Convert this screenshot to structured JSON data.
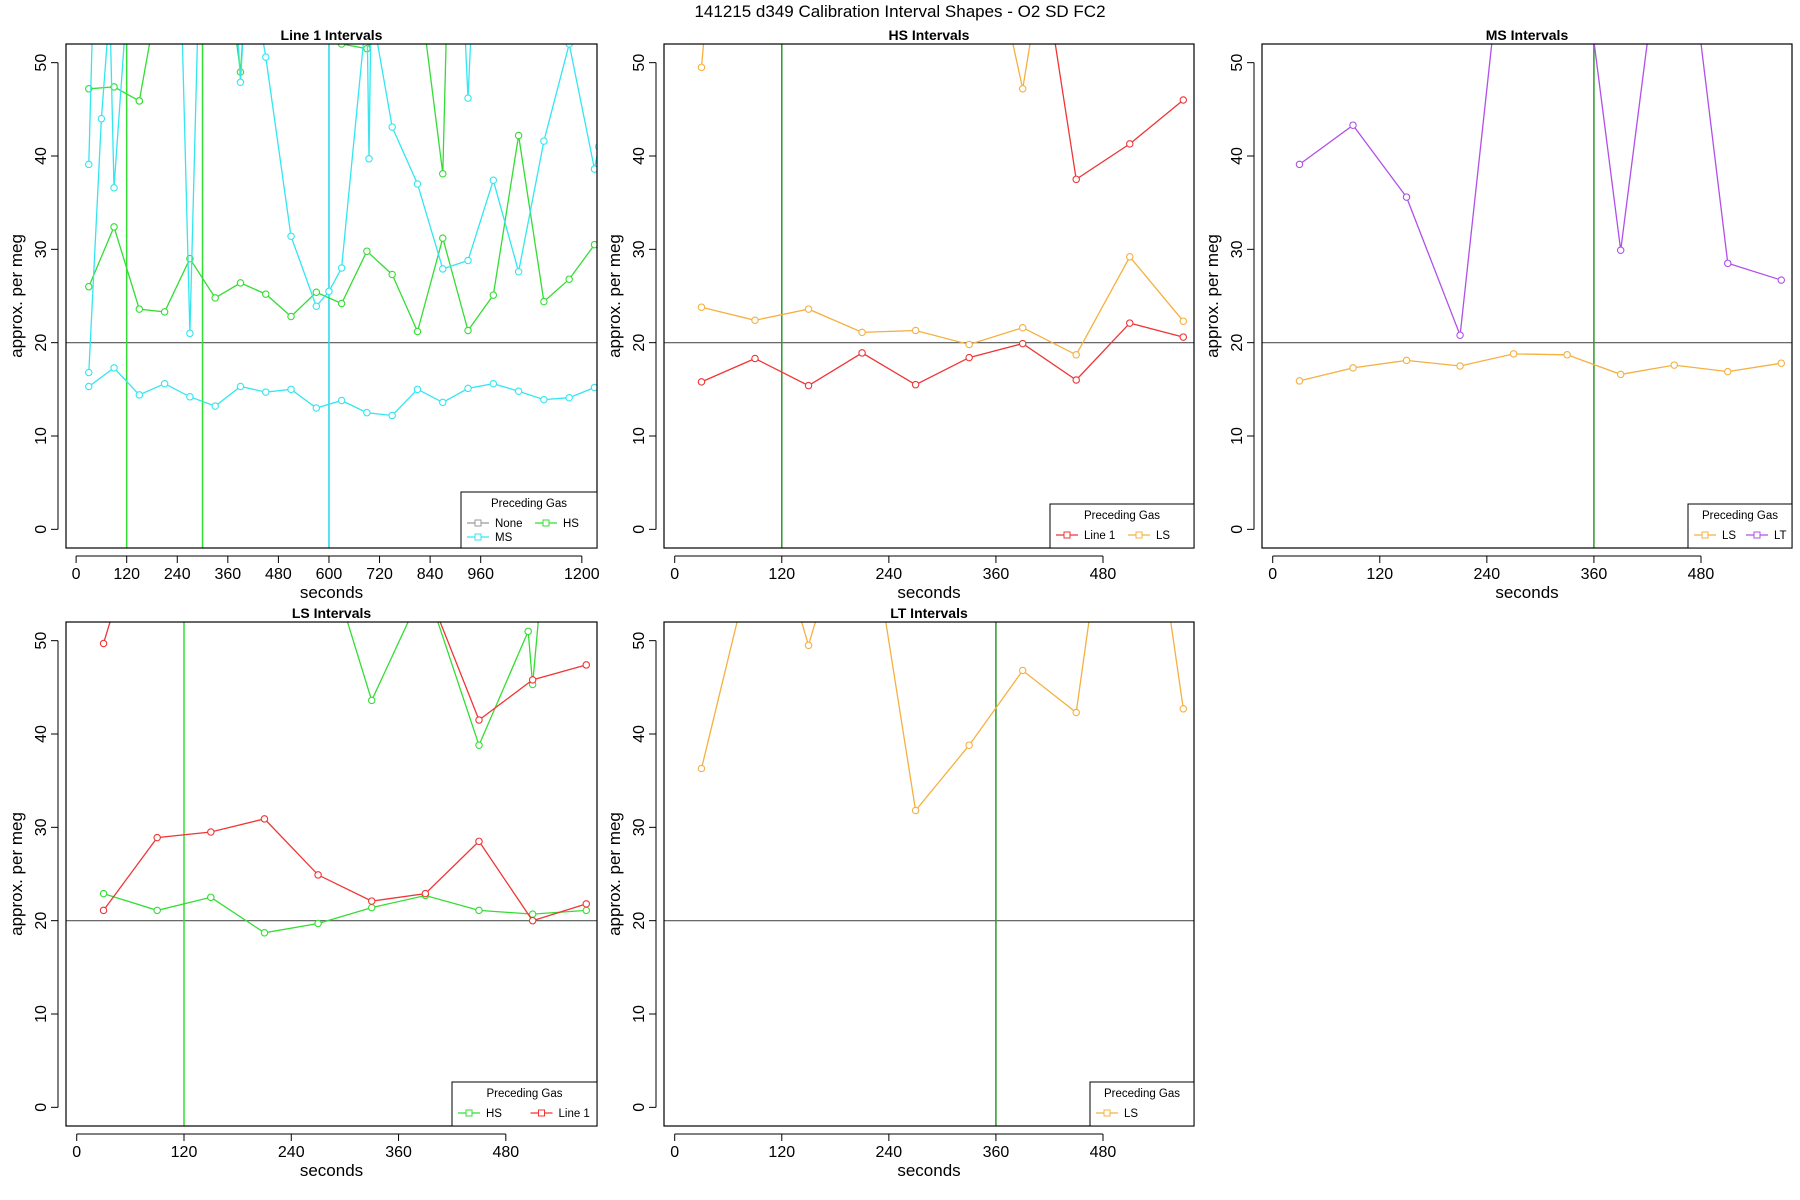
{
  "figure_title": "141215   d349   Calibration Interval Shapes - O2 SD FC2",
  "colors": {
    "frame": "#000000",
    "hline": "#555555",
    "None": "#999999",
    "HS": "#33dd33",
    "MS": "#33e6f0",
    "Line 1": "#f03535",
    "LS": "#f5b040",
    "LT": "#b050e8",
    "vline_green": "#2a9a2a",
    "vline_bright_green": "#33dd33",
    "vline_cyan": "#22d8ee"
  },
  "chart_data": [
    {
      "type": "line",
      "title": "Line 1 Intervals",
      "xlabel": "seconds",
      "ylabel": "approx. per meg",
      "xlim": [
        -24,
        1236
      ],
      "ylim": [
        -2,
        52
      ],
      "xticks": [
        0,
        120,
        240,
        360,
        480,
        600,
        720,
        840,
        960,
        1200
      ],
      "yticks": [
        0,
        10,
        20,
        30,
        40,
        50
      ],
      "hline": 20,
      "vlines": [
        {
          "x": 120,
          "color_key": "vline_bright_green"
        },
        {
          "x": 300,
          "color_key": "vline_bright_green"
        },
        {
          "x": 600,
          "color_key": "vline_cyan"
        }
      ],
      "legend": {
        "title": "Preceding Gas",
        "entries": [
          "None",
          "HS",
          "MS"
        ]
      },
      "series": [
        {
          "name": "HS",
          "color_key": "HS",
          "x": [
            30,
            90,
            150
          ],
          "y": [
            47.2,
            47.4,
            45.9
          ]
        },
        {
          "name": "HS",
          "color_key": "HS",
          "x": [
            30,
            90,
            150,
            210,
            270,
            330,
            390,
            450,
            510,
            570,
            630,
            690,
            750,
            810,
            870,
            930,
            990,
            1050,
            1110,
            1170,
            1230
          ],
          "y": [
            26.0,
            32.4,
            23.6,
            23.3,
            29.0,
            24.8,
            26.4,
            25.2,
            22.8,
            25.4,
            24.2,
            29.8,
            27.3,
            21.2,
            31.2,
            21.3,
            25.1,
            42.2,
            24.4,
            26.8,
            30.5
          ]
        },
        {
          "name": "HS",
          "color_key": "HS",
          "x": [
            150,
            190,
            370,
            390,
            400,
            570,
            630,
            690,
            750,
            820,
            870,
            880,
            930
          ],
          "y": [
            45.9,
            56,
            56,
            49.0,
            56,
            56,
            52.0,
            51.5,
            56,
            56,
            38.1,
            56,
            56
          ]
        },
        {
          "name": "MS",
          "color_key": "MS",
          "x": [
            30,
            60,
            80,
            90,
            120
          ],
          "y": [
            16.8,
            44.0,
            56,
            36.6,
            56
          ]
        },
        {
          "name": "MS",
          "color_key": "MS",
          "x": [
            30,
            90,
            150,
            210,
            270,
            330,
            390,
            450,
            510,
            570,
            630,
            690,
            750,
            810,
            870,
            930,
            990,
            1050,
            1110,
            1170,
            1230
          ],
          "y": [
            15.3,
            17.3,
            14.4,
            15.6,
            14.2,
            13.2,
            15.3,
            14.7,
            15.0,
            13.0,
            13.8,
            12.5,
            12.2,
            15.0,
            13.6,
            15.1,
            15.6,
            14.8,
            13.9,
            14.1,
            15.2
          ]
        },
        {
          "name": "MS",
          "color_key": "MS",
          "x": [
            30,
            40,
            250,
            270,
            290,
            380,
            390,
            400,
            430,
            450,
            510,
            570,
            600,
            630,
            690,
            695,
            700,
            750,
            810,
            870,
            930,
            990,
            1050,
            1110,
            1170,
            1230,
            1240
          ],
          "y": [
            39.1,
            56,
            56,
            21.0,
            56,
            56,
            47.9,
            56,
            56,
            50.6,
            31.4,
            23.9,
            25.5,
            28.0,
            56,
            39.7,
            56,
            43.1,
            37.0,
            27.9,
            28.8,
            37.4,
            27.6,
            41.6,
            52.0,
            38.6,
            41.0
          ]
        },
        {
          "name": "MS",
          "color_key": "MS",
          "x": [
            920,
            930,
            940
          ],
          "y": [
            56,
            46.2,
            56
          ]
        }
      ]
    },
    {
      "type": "line",
      "title": "HS Intervals",
      "xlabel": "seconds",
      "ylabel": "approx. per meg",
      "xlim": [
        -12,
        582
      ],
      "ylim": [
        -2,
        52
      ],
      "xticks": [
        0,
        120,
        240,
        360,
        480
      ],
      "yticks": [
        0,
        10,
        20,
        30,
        40,
        50
      ],
      "hline": 20,
      "vlines": [
        {
          "x": 120,
          "color_key": "vline_green"
        }
      ],
      "legend": {
        "title": "Preceding Gas",
        "entries": [
          "Line 1",
          "LS"
        ]
      },
      "series": [
        {
          "name": "Line 1",
          "color_key": "Line 1",
          "x": [
            30,
            90,
            150,
            210,
            270,
            330,
            390,
            450,
            510,
            570
          ],
          "y": [
            15.8,
            18.3,
            15.4,
            18.9,
            15.5,
            18.4,
            19.9,
            16.0,
            22.1,
            20.6
          ]
        },
        {
          "name": "Line 1",
          "color_key": "Line 1",
          "x": [
            420,
            450,
            510,
            570
          ],
          "y": [
            56,
            37.5,
            41.3,
            46.0
          ]
        },
        {
          "name": "LS",
          "color_key": "LS",
          "x": [
            30,
            90,
            150,
            210,
            270,
            330,
            390,
            450,
            510,
            570
          ],
          "y": [
            23.8,
            22.4,
            23.6,
            21.1,
            21.3,
            19.8,
            21.6,
            18.7,
            29.2,
            22.3
          ]
        },
        {
          "name": "LS",
          "color_key": "LS",
          "x": [
            30,
            36
          ],
          "y": [
            49.5,
            56
          ]
        },
        {
          "name": "LS",
          "color_key": "LS",
          "x": [
            370,
            390,
            405
          ],
          "y": [
            56,
            47.2,
            56
          ]
        }
      ]
    },
    {
      "type": "line",
      "title": "MS Intervals",
      "xlabel": "seconds",
      "ylabel": "approx. per meg",
      "xlim": [
        -12,
        582
      ],
      "ylim": [
        -2,
        52
      ],
      "xticks": [
        0,
        120,
        240,
        360,
        480
      ],
      "yticks": [
        0,
        10,
        20,
        30,
        40,
        50
      ],
      "hline": 20,
      "vlines": [
        {
          "x": 360,
          "color_key": "vline_green"
        }
      ],
      "legend": {
        "title": "Preceding Gas",
        "entries": [
          "LS",
          "LT"
        ]
      },
      "series": [
        {
          "name": "LS",
          "color_key": "LS",
          "x": [
            30,
            90,
            150,
            210,
            270,
            330,
            390,
            450,
            510,
            570
          ],
          "y": [
            15.9,
            17.3,
            18.1,
            17.5,
            18.8,
            18.7,
            16.6,
            17.6,
            16.9,
            17.8
          ]
        },
        {
          "name": "LT",
          "color_key": "LT",
          "x": [
            30,
            90,
            150,
            210,
            250,
            355,
            390,
            425,
            475,
            510,
            570
          ],
          "y": [
            39.1,
            43.3,
            35.6,
            20.8,
            56,
            56,
            29.9,
            56,
            56,
            28.5,
            26.7
          ]
        }
      ]
    },
    {
      "type": "line",
      "title": "LS Intervals",
      "xlabel": "seconds",
      "ylabel": "approx. per meg",
      "xlim": [
        -12,
        582
      ],
      "ylim": [
        -2,
        52
      ],
      "xticks": [
        0,
        120,
        240,
        360,
        480
      ],
      "yticks": [
        0,
        10,
        20,
        30,
        40,
        50
      ],
      "hline": 20,
      "vlines": [
        {
          "x": 120,
          "color_key": "vline_bright_green"
        }
      ],
      "legend": {
        "title": "Preceding Gas",
        "entries": [
          "HS",
          "Line 1"
        ]
      },
      "series": [
        {
          "name": "HS",
          "color_key": "HS",
          "x": [
            30,
            90,
            150,
            210,
            270,
            330,
            390,
            450,
            510,
            570
          ],
          "y": [
            22.9,
            21.1,
            22.5,
            18.7,
            19.7,
            21.4,
            22.7,
            21.1,
            20.7,
            21.1
          ]
        },
        {
          "name": "HS",
          "color_key": "HS",
          "x": [
            290,
            330,
            390,
            450,
            505,
            510,
            520
          ],
          "y": [
            56,
            43.6,
            56,
            38.8,
            51.0,
            45.3,
            56
          ]
        },
        {
          "name": "Line 1",
          "color_key": "Line 1",
          "x": [
            30,
            90,
            150,
            210,
            270,
            330,
            390,
            450,
            510,
            570
          ],
          "y": [
            21.1,
            28.9,
            29.5,
            30.9,
            24.9,
            22.1,
            22.9,
            28.5,
            20.0,
            21.8
          ]
        },
        {
          "name": "Line 1",
          "color_key": "Line 1",
          "x": [
            30,
            50
          ],
          "y": [
            49.7,
            56
          ]
        },
        {
          "name": "Line 1",
          "color_key": "Line 1",
          "x": [
            390,
            450,
            510,
            570
          ],
          "y": [
            56,
            41.5,
            45.8,
            47.4
          ]
        }
      ]
    },
    {
      "type": "line",
      "title": "LT Intervals",
      "xlabel": "seconds",
      "ylabel": "approx. per meg",
      "xlim": [
        -12,
        582
      ],
      "ylim": [
        -2,
        52
      ],
      "xticks": [
        0,
        120,
        240,
        360,
        480
      ],
      "yticks": [
        0,
        10,
        20,
        30,
        40,
        50
      ],
      "hline": 20,
      "vlines": [
        {
          "x": 360,
          "color_key": "vline_green"
        }
      ],
      "legend": {
        "title": "Preceding Gas",
        "entries": [
          "LS"
        ]
      },
      "series": [
        {
          "name": "LS",
          "color_key": "LS",
          "x": [
            30,
            80,
            130,
            150,
            170,
            230,
            270,
            330,
            390,
            450,
            470,
            550,
            570
          ],
          "y": [
            36.3,
            56,
            56,
            49.5,
            56,
            56,
            31.8,
            38.8,
            46.8,
            42.3,
            56,
            56,
            42.7
          ]
        }
      ]
    }
  ]
}
